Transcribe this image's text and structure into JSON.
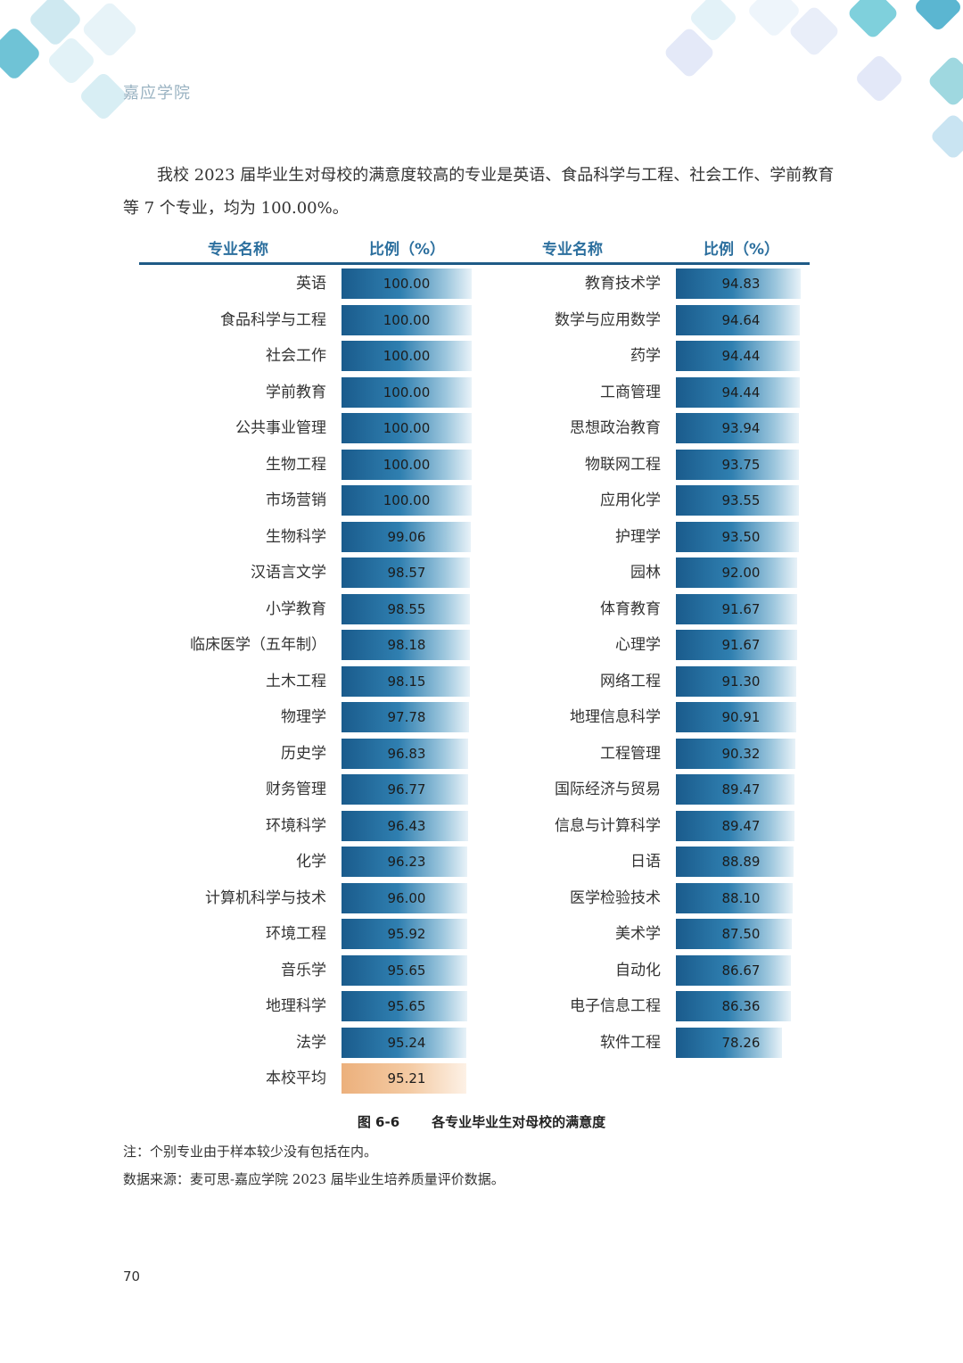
{
  "header": {
    "title": "嘉应学院"
  },
  "intro": {
    "text": "我校 2023 届毕业生对母校的满意度较高的专业是英语、食品科学与工程、社会工作、学前教育等 7 个专业，均为 100.00%。"
  },
  "table": {
    "col_name_label": "专业名称",
    "col_ratio_label": "比例（%）",
    "left": [
      {
        "name": "英语",
        "value": "100.00"
      },
      {
        "name": "食品科学与工程",
        "value": "100.00"
      },
      {
        "name": "社会工作",
        "value": "100.00"
      },
      {
        "name": "学前教育",
        "value": "100.00"
      },
      {
        "name": "公共事业管理",
        "value": "100.00"
      },
      {
        "name": "生物工程",
        "value": "100.00"
      },
      {
        "name": "市场营销",
        "value": "100.00"
      },
      {
        "name": "生物科学",
        "value": "99.06"
      },
      {
        "name": "汉语言文学",
        "value": "98.57"
      },
      {
        "name": "小学教育",
        "value": "98.55"
      },
      {
        "name": "临床医学（五年制）",
        "value": "98.18"
      },
      {
        "name": "土木工程",
        "value": "98.15"
      },
      {
        "name": "物理学",
        "value": "97.78"
      },
      {
        "name": "历史学",
        "value": "96.83"
      },
      {
        "name": "财务管理",
        "value": "96.77"
      },
      {
        "name": "环境科学",
        "value": "96.43"
      },
      {
        "name": "化学",
        "value": "96.23"
      },
      {
        "name": "计算机科学与技术",
        "value": "96.00"
      },
      {
        "name": "环境工程",
        "value": "95.92"
      },
      {
        "name": "音乐学",
        "value": "95.65"
      },
      {
        "name": "地理科学",
        "value": "95.65"
      },
      {
        "name": "法学",
        "value": "95.24"
      },
      {
        "name": "本校平均",
        "value": "95.21",
        "average": true
      }
    ],
    "right": [
      {
        "name": "教育技术学",
        "value": "94.83"
      },
      {
        "name": "数学与应用数学",
        "value": "94.64"
      },
      {
        "name": "药学",
        "value": "94.44"
      },
      {
        "name": "工商管理",
        "value": "94.44"
      },
      {
        "name": "思想政治教育",
        "value": "93.94"
      },
      {
        "name": "物联网工程",
        "value": "93.75"
      },
      {
        "name": "应用化学",
        "value": "93.55"
      },
      {
        "name": "护理学",
        "value": "93.50"
      },
      {
        "name": "园林",
        "value": "92.00"
      },
      {
        "name": "体育教育",
        "value": "91.67"
      },
      {
        "name": "心理学",
        "value": "91.67"
      },
      {
        "name": "网络工程",
        "value": "91.30"
      },
      {
        "name": "地理信息科学",
        "value": "90.91"
      },
      {
        "name": "工程管理",
        "value": "90.32"
      },
      {
        "name": "国际经济与贸易",
        "value": "89.47"
      },
      {
        "name": "信息与计算科学",
        "value": "89.47"
      },
      {
        "name": "日语",
        "value": "88.89"
      },
      {
        "name": "医学检验技术",
        "value": "88.10"
      },
      {
        "name": "美术学",
        "value": "87.50"
      },
      {
        "name": "自动化",
        "value": "86.67"
      },
      {
        "name": "电子信息工程",
        "value": "86.36"
      },
      {
        "name": "软件工程",
        "value": "78.26"
      }
    ]
  },
  "figure": {
    "number": "图 6-6",
    "title": "各专业毕业生对母校的满意度"
  },
  "notes": {
    "note": "注：个别专业由于样本较少没有包括在内。",
    "source": "数据来源：麦可思-嘉应学院 2023 届毕业生培养质量评价数据。"
  },
  "page": {
    "number": "70"
  },
  "colors": {
    "bar_dark": "#1a5b8c",
    "bar_light": "#e8f2f8",
    "avg_bar": "#ecb07c",
    "header_text": "#2c6f9e"
  }
}
